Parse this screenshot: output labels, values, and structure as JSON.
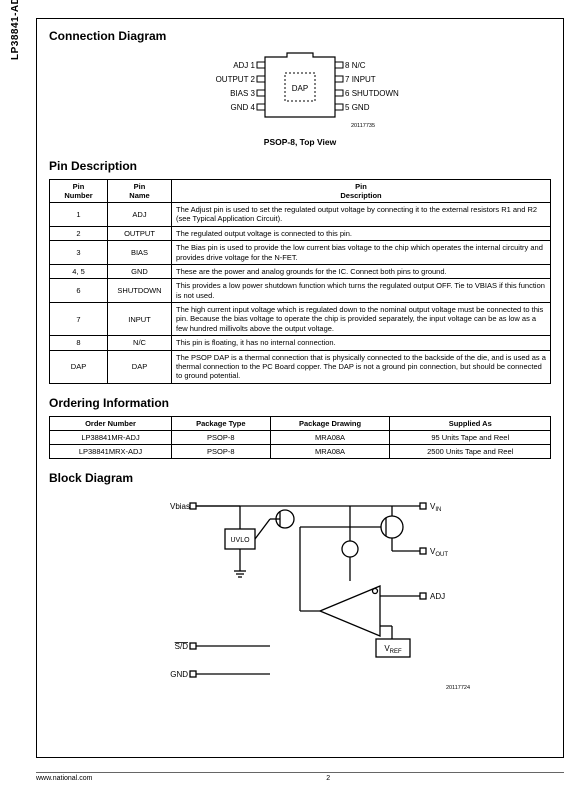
{
  "side_label": "LP38841-ADJ",
  "sections": {
    "connection": "Connection Diagram",
    "pin": "Pin Description",
    "ordering": "Ordering Information",
    "block": "Block Diagram"
  },
  "conn_diagram": {
    "caption": "PSOP-8, Top View",
    "code": "20117735",
    "center_label": "DAP",
    "left_pins": [
      {
        "label": "ADJ",
        "num": "1"
      },
      {
        "label": "OUTPUT",
        "num": "2"
      },
      {
        "label": "BIAS",
        "num": "3"
      },
      {
        "label": "GND",
        "num": "4"
      }
    ],
    "right_pins": [
      {
        "num": "8",
        "label": "N/C"
      },
      {
        "num": "7",
        "label": "INPUT"
      },
      {
        "num": "6",
        "label": "SHUTDOWN"
      },
      {
        "num": "5",
        "label": "GND"
      }
    ]
  },
  "pin_table": {
    "headers": {
      "num": "Pin\nNumber",
      "name": "Pin\nName",
      "desc": "Pin\nDescription"
    },
    "rows": [
      {
        "num": "1",
        "name": "ADJ",
        "desc": "The Adjust pin is used to set the regulated output voltage by connecting it to the external resistors R1 and R2 (see Typical Application Circuit)."
      },
      {
        "num": "2",
        "name": "OUTPUT",
        "desc": "The regulated output voltage is connected to this pin."
      },
      {
        "num": "3",
        "name": "BIAS",
        "desc": "The Bias pin is used to provide the low current bias voltage to the chip which operates the internal circuitry and provides drive voltage for the N-FET."
      },
      {
        "num": "4, 5",
        "name": "GND",
        "desc": "These are the power and analog grounds for the IC. Connect both pins to ground."
      },
      {
        "num": "6",
        "name": "SHUTDOWN",
        "desc": "This provides a low power shutdown function which turns the regulated output OFF. Tie to VBIAS if this function is not used."
      },
      {
        "num": "7",
        "name": "INPUT",
        "desc": "The high current input voltage which is regulated down to the nominal output voltage must be connected to this pin. Because the bias voltage to operate the chip is provided separately, the input voltage can be as low as a few hundred millivolts above the output voltage."
      },
      {
        "num": "8",
        "name": "N/C",
        "desc": "This pin is floating, it has no internal connection."
      },
      {
        "num": "DAP",
        "name": "DAP",
        "desc": "The PSOP DAP is a thermal connection that is physically connected to the backside of the die, and is used as a thermal connection to the PC Board copper. The DAP is not a ground pin connection, but should be connected to ground potential."
      }
    ]
  },
  "order_table": {
    "headers": [
      "Order Number",
      "Package Type",
      "Package Drawing",
      "Supplied As"
    ],
    "rows": [
      [
        "LP38841MR-ADJ",
        "PSOP-8",
        "MRA08A",
        "95 Units Tape and Reel"
      ],
      [
        "LP38841MRX-ADJ",
        "PSOP-8",
        "MRA08A",
        "2500 Units Tape and Reel"
      ]
    ]
  },
  "block_diagram": {
    "labels": {
      "vbias": "Vbias",
      "uvlo": "UVLO",
      "vin": "VIN",
      "vout": "VOUT",
      "adj": "ADJ",
      "vref": "VREF",
      "sd": "S/D",
      "gnd": "GND"
    },
    "code": "20117724"
  },
  "footer": {
    "url": "www.national.com",
    "page": "2"
  }
}
